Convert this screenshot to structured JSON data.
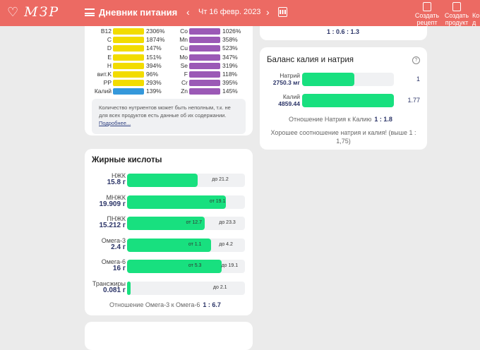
{
  "header": {
    "logo": "МЗР",
    "title": "Дневник питания",
    "date": "Чт 16 февр. 2023",
    "actions": [
      {
        "line1": "Создать",
        "line2": "рецепт"
      },
      {
        "line1": "Создать",
        "line2": "продукт"
      },
      {
        "line1": "Ко",
        "line2": "д"
      }
    ]
  },
  "vitamins": [
    {
      "name": "B12",
      "pct": "2306%"
    },
    {
      "name": "C",
      "pct": "1874%"
    },
    {
      "name": "D",
      "pct": "147%"
    },
    {
      "name": "E",
      "pct": "151%"
    },
    {
      "name": "H",
      "pct": "394%"
    },
    {
      "name": "вит.K",
      "pct": "96%"
    },
    {
      "name": "PP",
      "pct": "293%"
    },
    {
      "name": "Калий",
      "pct": "139%"
    }
  ],
  "minerals": [
    {
      "name": "Co",
      "pct": "1026%"
    },
    {
      "name": "Mn",
      "pct": "358%"
    },
    {
      "name": "Cu",
      "pct": "523%"
    },
    {
      "name": "Mo",
      "pct": "347%"
    },
    {
      "name": "Se",
      "pct": "319%"
    },
    {
      "name": "F",
      "pct": "118%"
    },
    {
      "name": "Cr",
      "pct": "395%"
    },
    {
      "name": "Zn",
      "pct": "145%"
    }
  ],
  "note": {
    "text": "Количество нутриентов может быть неполным, т.к. не для всех продуктов есть данные об их содержании.",
    "link": "Подробнее..."
  },
  "fatty": {
    "title": "Жирные кислоты",
    "items": [
      {
        "name": "НЖК",
        "value": "15.8 г",
        "fill": 60,
        "m1": "",
        "m2": "до 21.2"
      },
      {
        "name": "МНЖК",
        "value": "19.909 г",
        "fill": 84,
        "m1": "от 19.1",
        "m2": ""
      },
      {
        "name": "ПНЖК",
        "value": "15.212 г",
        "fill": 66,
        "m1": "от 12.7",
        "m2": "до 23.3"
      },
      {
        "name": "Омега-3",
        "value": "2.4 г",
        "fill": 71,
        "m1": "от 1.1",
        "m2": "до 4.2"
      },
      {
        "name": "Омега-6",
        "value": "16 г",
        "fill": 80,
        "m1": "от 5.3",
        "m2": "до 19.1"
      },
      {
        "name": "Трансжиры",
        "value": "0.081 г",
        "fill": 3,
        "m1": "",
        "m2": "до 2.1"
      }
    ],
    "ratio_label": "Отношение Омега-3 к Омега-6",
    "ratio": "1 : 6.7"
  },
  "top_ratio": "1 : 0.6 : 1.3",
  "balance": {
    "title": "Баланс калия и натрия",
    "items": [
      {
        "name": "Натрий",
        "value": "2750.3 мг",
        "fill": 57,
        "ratio": "1"
      },
      {
        "name": "Калий",
        "value": "4859.44",
        "fill": 100,
        "ratio": "1.77"
      }
    ],
    "ratio_label": "Отношение Натрия к Калию",
    "ratio": "1 : 1.8",
    "message": "Хорошее соотношение натрия и калия! (выше 1 : 1,75)"
  },
  "colors": {
    "header": "#ec6a63",
    "vitamin": "#f2dc00",
    "mineral": "#9b59b6",
    "potassium": "#3498db",
    "fill": "#18e07f"
  }
}
